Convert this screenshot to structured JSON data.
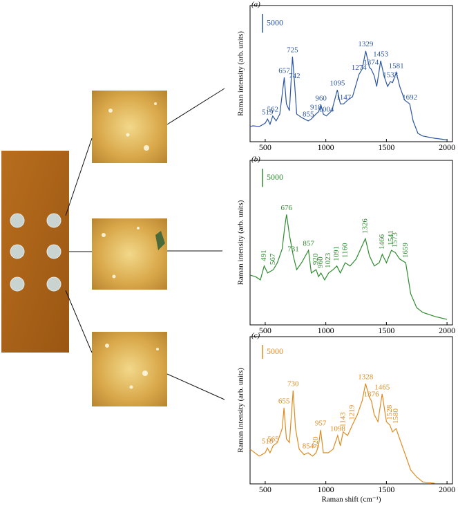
{
  "chart_data": [
    {
      "type": "line",
      "panel_label": "(a)",
      "y_label": "Raman intensity (arb. units)",
      "color": "#2a55a0",
      "xlim": [
        375,
        2045
      ],
      "xticks": [
        500,
        1000,
        1500,
        2000
      ],
      "ylim": [
        0,
        36000
      ],
      "scale_bar": 5000,
      "x": [
        375,
        400,
        450,
        500,
        519,
        540,
        562,
        590,
        620,
        657,
        675,
        700,
        725,
        742,
        760,
        800,
        855,
        880,
        918,
        940,
        960,
        980,
        1004,
        1050,
        1095,
        1120,
        1147,
        1180,
        1220,
        1274,
        1300,
        1329,
        1360,
        1374,
        1400,
        1420,
        1453,
        1480,
        1510,
        1533,
        1550,
        1581,
        1610,
        1650,
        1692,
        1720,
        1760,
        1800,
        1900,
        2000
      ],
      "values": [
        4000,
        4200,
        4000,
        4900,
        6000,
        4600,
        6800,
        5500,
        7300,
        17000,
        10000,
        8200,
        22500,
        15600,
        7300,
        6400,
        5500,
        6000,
        7300,
        7900,
        9700,
        7300,
        6800,
        8200,
        13700,
        10000,
        10000,
        11000,
        11900,
        17800,
        19200,
        24000,
        19600,
        19200,
        17400,
        14600,
        21400,
        17400,
        14600,
        15900,
        15600,
        18300,
        14600,
        11000,
        10000,
        5500,
        2200,
        1500,
        900,
        500
      ],
      "peak_labels": [
        519,
        562,
        657,
        725,
        742,
        855,
        918,
        960,
        1004,
        1095,
        1147,
        1274,
        1329,
        1374,
        1453,
        1533,
        1581,
        1692
      ]
    },
    {
      "type": "line",
      "panel_label": "(b)",
      "y_label": "Raman intensity (arb. units)",
      "color": "#2e8b2e",
      "xlim": [
        375,
        2045
      ],
      "xticks": [
        500,
        1000,
        1500,
        2000
      ],
      "ylim": [
        0,
        45000
      ],
      "scale_bar": 5000,
      "x": [
        375,
        420,
        460,
        491,
        520,
        567,
        600,
        640,
        660,
        676,
        700,
        731,
        760,
        800,
        857,
        880,
        920,
        940,
        960,
        990,
        1023,
        1060,
        1091,
        1120,
        1160,
        1200,
        1250,
        1300,
        1326,
        1360,
        1400,
        1440,
        1466,
        1500,
        1541,
        1573,
        1610,
        1659,
        1700,
        1750,
        1800,
        1900,
        2000
      ],
      "values": [
        13600,
        13200,
        12300,
        16100,
        14200,
        15100,
        17000,
        20800,
        26500,
        30200,
        24600,
        18900,
        15100,
        17000,
        20400,
        14200,
        15100,
        13200,
        14200,
        12300,
        14200,
        15100,
        16100,
        14200,
        17000,
        16100,
        18000,
        21700,
        23600,
        18900,
        16100,
        17000,
        19300,
        17000,
        20400,
        19800,
        18000,
        17000,
        8500,
        4700,
        3400,
        2300,
        1500
      ],
      "peak_labels": [
        491,
        567,
        676,
        731,
        857,
        920,
        960,
        1023,
        1091,
        1160,
        1326,
        1466,
        1541,
        1573,
        1659
      ]
    },
    {
      "type": "line",
      "panel_label": "(c)",
      "y_label": "Raman intensity (arb. units)",
      "x_label": "Raman shift (cm⁻¹)",
      "color": "#e08a1e",
      "xlim": [
        375,
        2045
      ],
      "xticks": [
        500,
        1000,
        1500,
        2000
      ],
      "ylim": [
        0,
        53000
      ],
      "scale_bar": 5000,
      "x": [
        375,
        450,
        500,
        518,
        540,
        565,
        600,
        640,
        655,
        675,
        700,
        730,
        750,
        780,
        820,
        854,
        890,
        920,
        940,
        957,
        980,
        1020,
        1060,
        1098,
        1120,
        1143,
        1180,
        1219,
        1260,
        1300,
        1328,
        1360,
        1376,
        1400,
        1430,
        1465,
        1500,
        1528,
        1550,
        1580,
        1620,
        1660,
        1700,
        1750,
        1800,
        1900
      ],
      "values": [
        12500,
        10000,
        11200,
        12900,
        11200,
        13700,
        14900,
        19900,
        27400,
        16200,
        14900,
        33600,
        19900,
        12500,
        10500,
        11200,
        10000,
        11200,
        13700,
        19400,
        11200,
        11200,
        12500,
        17400,
        13700,
        18700,
        17400,
        21200,
        24900,
        29900,
        36100,
        31100,
        29900,
        24900,
        22400,
        32400,
        22400,
        21200,
        18700,
        19900,
        14900,
        10000,
        5000,
        2500,
        700,
        200
      ],
      "peak_labels": [
        518,
        565,
        655,
        730,
        854,
        920,
        957,
        1098,
        1143,
        1219,
        1328,
        1376,
        1465,
        1528,
        1580
      ]
    }
  ]
}
